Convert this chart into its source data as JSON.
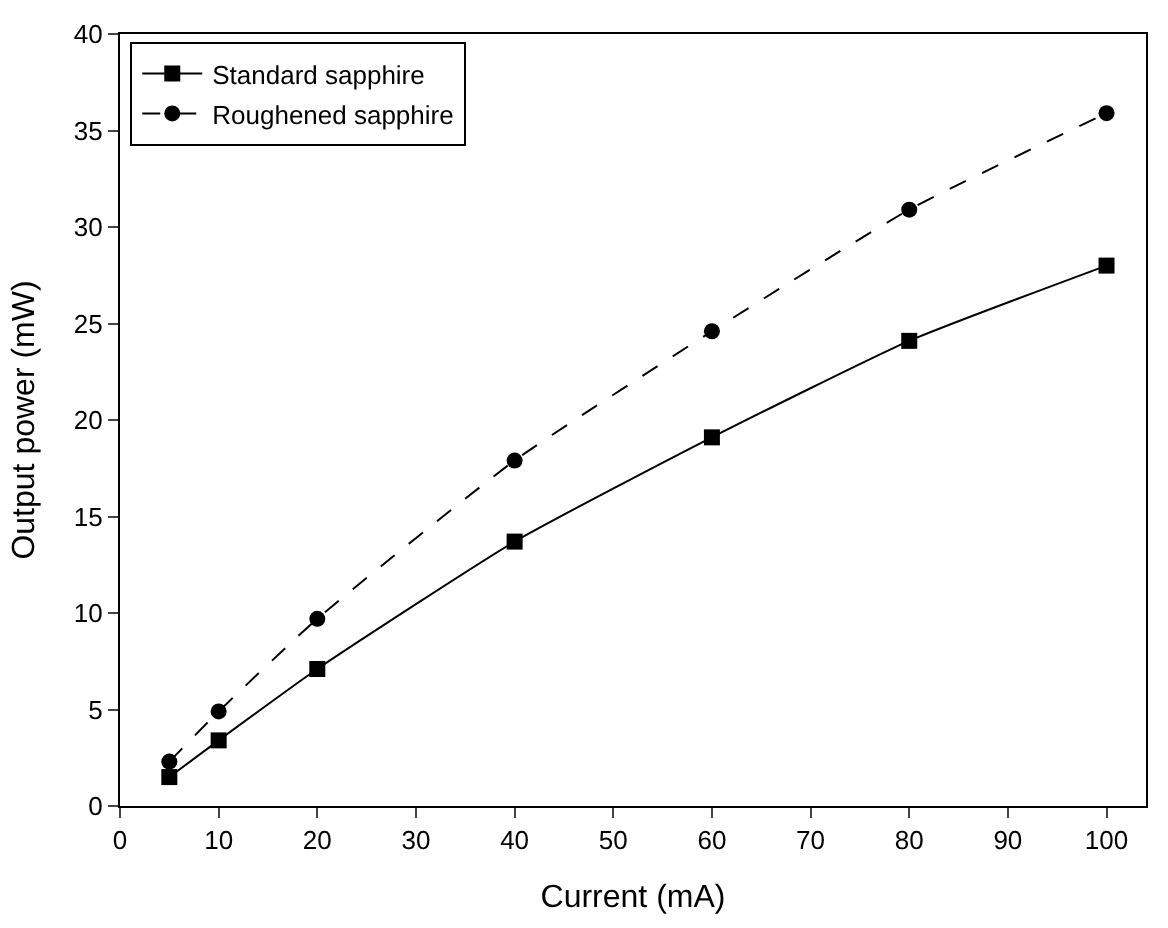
{
  "chart_data": {
    "type": "line",
    "x": [
      5,
      10,
      20,
      40,
      60,
      80,
      100
    ],
    "series": [
      {
        "name": "Standard sapphire",
        "color": "#000000",
        "values": [
          1.5,
          3.4,
          7.1,
          13.7,
          19.1,
          24.1,
          28.0
        ],
        "marker": "square",
        "line_style": "solid"
      },
      {
        "name": "Roughened sapphire",
        "color": "#000000",
        "values": [
          2.3,
          4.9,
          9.7,
          17.9,
          24.6,
          30.9,
          35.9
        ],
        "marker": "circle",
        "line_style": "dashed"
      }
    ],
    "xlabel": "Current (mA)",
    "ylabel": "Output power (mW)",
    "xlim": [
      0,
      104
    ],
    "xticks": [
      0,
      10,
      20,
      30,
      40,
      50,
      60,
      70,
      80,
      90,
      100
    ],
    "ylim": [
      0,
      40
    ],
    "yticks": [
      0,
      5,
      10,
      15,
      20,
      25,
      30,
      35,
      40
    ],
    "legend": "top left"
  }
}
